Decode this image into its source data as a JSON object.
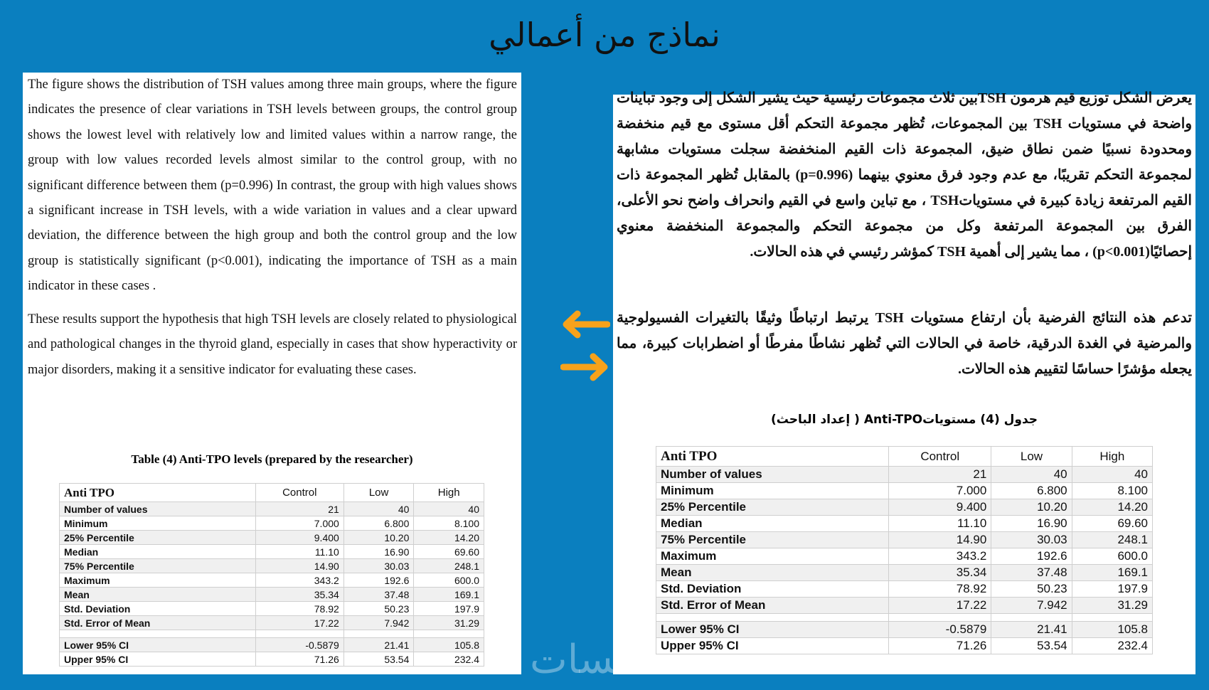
{
  "title": "نماذج من أعمالي",
  "colors": {
    "background": "#0a7fbf",
    "arrow": "#f7a21b"
  },
  "left": {
    "paragraphs": [
      "The figure shows the distribution of TSH values among three main groups, where the figure indicates the presence of clear variations in TSH levels between groups, the control group shows the lowest level with relatively low and limited values within a narrow range, the group with low values recorded levels almost similar to the control group, with no significant difference between them (p=0.996) In contrast, the group with high values shows a significant increase in TSH levels, with a wide variation in values and a clear upward deviation, the difference between the high group and both the control group and the low group is statistically significant (p<0.001), indicating the importance of TSH as a main indicator in these cases .",
      "These results support the hypothesis that high TSH levels are closely related to physiological and pathological changes in the thyroid gland, especially in cases that show hyperactivity or major disorders, making it a sensitive indicator for evaluating these cases."
    ],
    "table_title": "Table (4) Anti-TPO levels (prepared by the researcher)"
  },
  "right": {
    "paragraphs": [
      "يعرض الشكل توزيع قيم هرمون  TSHبين ثلاث مجموعات رئيسية حيث يشير الشكل إلى وجود تباينات واضحة في مستويات TSH بين المجموعات، تُظهر مجموعة التحكم أقل مستوى مع قيم منخفضة ومحدودة نسبيًا ضمن نطاق ضيق، المجموعة ذات القيم المنخفضة سجلت مستويات مشابهة لمجموعة التحكم تقريبًا، مع عدم وجود فرق معنوي بينهما (p=0.996) بالمقابل تُظهر المجموعة ذات القيم المرتفعة زيادة كبيرة في مستوياتTSH ، مع تباين واسع في القيم وانحراف واضح نحو الأعلى، الفرق بين المجموعة المرتفعة وكل من مجموعة التحكم والمجموعة المنخفضة معنوي إحصائيًا(p<0.001) ، مما يشير إلى أهمية TSH كمؤشر رئيسي في هذه الحالات.",
      "تدعم هذه النتائج الفرضية بأن ارتفاع مستويات TSH يرتبط ارتباطًا وثيقًا بالتغيرات الفسيولوجية والمرضية في الغدة الدرقية، خاصة في الحالات التي تُظهر نشاطًا مفرطًا أو اضطرابات كبيرة، مما يجعله مؤشرًا حساسًا لتقييم هذه الحالات."
    ],
    "table_title": "جدول (4) مستوياتAnti-TPO ( إعداد الباحث)"
  },
  "table": {
    "headers": [
      "Anti TPO",
      "Control",
      "Low",
      "High"
    ],
    "rows": [
      [
        "Number of values",
        "21",
        "40",
        "40"
      ],
      [
        "Minimum",
        "7.000",
        "6.800",
        "8.100"
      ],
      [
        "25% Percentile",
        "9.400",
        "10.20",
        "14.20"
      ],
      [
        "Median",
        "11.10",
        "16.90",
        "69.60"
      ],
      [
        "75% Percentile",
        "14.90",
        "30.03",
        "248.1"
      ],
      [
        "Maximum",
        "343.2",
        "192.6",
        "600.0"
      ],
      [
        "Mean",
        "35.34",
        "37.48",
        "169.1"
      ],
      [
        "Std. Deviation",
        "78.92",
        "50.23",
        "197.9"
      ],
      [
        "Std. Error of Mean",
        "17.22",
        "7.942",
        "31.29"
      ],
      [
        "",
        "",
        "",
        ""
      ],
      [
        "Lower 95% CI",
        "-0.5879",
        "21.41",
        "105.8"
      ],
      [
        "Upper 95% CI",
        "71.26",
        "53.54",
        "232.4"
      ]
    ]
  },
  "icons": {
    "arrow_left": "arrow-left-icon",
    "arrow_right": "arrow-right-icon"
  },
  "watermark": "خمسات"
}
